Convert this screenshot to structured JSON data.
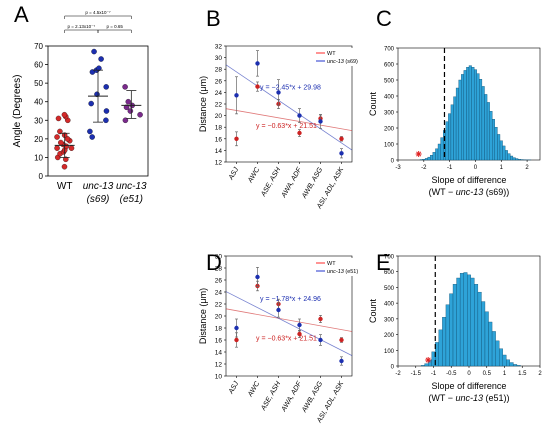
{
  "panel_labels": [
    "A",
    "B",
    "C",
    "D",
    "E"
  ],
  "chart_data": [
    {
      "panel": "A",
      "type": "scatter",
      "ylabel": "Angle (Degrees)",
      "ylim": [
        0,
        70
      ],
      "yticks": [
        0,
        10,
        20,
        30,
        40,
        50,
        60,
        70
      ],
      "groups": [
        {
          "label_line1": "WT",
          "label_line2": "",
          "color": "#d42a2a",
          "values": [
            5,
            9,
            10,
            12,
            13,
            14,
            15,
            15,
            16,
            17,
            18,
            19,
            20,
            21,
            22,
            24,
            30,
            31,
            32,
            33
          ],
          "mean": 16.5,
          "sd_low": 10,
          "sd_high": 23
        },
        {
          "label_line1": "unc-13",
          "label_line2": "(s69)",
          "color": "#1c2fb0",
          "values": [
            21,
            24,
            30,
            35,
            39,
            44,
            48,
            56,
            57,
            58,
            63,
            67
          ],
          "mean": 43,
          "sd_low": 29,
          "sd_high": 57
        },
        {
          "label_line1": "unc-13",
          "label_line2": "(e51)",
          "color": "#7a2a8c",
          "values": [
            30,
            33,
            35,
            37,
            38,
            40,
            48
          ],
          "mean": 38,
          "sd_low": 31,
          "sd_high": 46
        }
      ],
      "significance": [
        {
          "text": "p = 4.5x10⁻⁷",
          "from": 0,
          "to": 2
        },
        {
          "text": "p = 2.13x10⁻⁷",
          "from": 0,
          "to": 1
        },
        {
          "text": "p = 0.65",
          "from": 1,
          "to": 2
        }
      ]
    },
    {
      "panel": "B",
      "type": "scatter",
      "ylabel": "Distance (μm)",
      "ylim": [
        12,
        32
      ],
      "yticks": [
        12,
        14,
        16,
        18,
        20,
        22,
        24,
        26,
        28,
        30,
        32
      ],
      "categories": [
        "ASJ",
        "AWC",
        "ASE, ASH",
        "AWA, ADF",
        "AWB, ASG",
        "ASI, ADL, ASK"
      ],
      "legend": [
        {
          "name": "WT",
          "italic": false,
          "color": "#ff2a2a"
        },
        {
          "name": "unc-13 (s69)",
          "italic": true,
          "color": "#2233cc"
        }
      ],
      "series": [
        {
          "name": "WT",
          "color": "#cc2222",
          "values": [
            16,
            25,
            22,
            17,
            19.5,
            16
          ],
          "err": [
            1.2,
            0.8,
            0.8,
            0.6,
            0.6,
            0.4
          ],
          "fit_slope": -0.63,
          "fit_intercept": 21.51,
          "fit_label": "y = −0.63*x + 21.51"
        },
        {
          "name": "unc-13 (s69)",
          "color": "#1c2fb0",
          "values": [
            23.5,
            29,
            24,
            20,
            19,
            13.5
          ],
          "err": [
            3.2,
            2.2,
            2.2,
            1.2,
            1.2,
            0.8
          ],
          "fit_slope": -2.45,
          "fit_intercept": 29.98,
          "fit_label": "y = −2.45*x + 29.98"
        }
      ]
    },
    {
      "panel": "C",
      "type": "bar",
      "xlabel_line1": "Slope of difference",
      "xlabel_line2": "(WT − unc-13 (s69))",
      "ylabel": "Count",
      "xlim": [
        -3,
        2.5
      ],
      "xticks": [
        -3,
        -2,
        -1,
        0,
        1,
        2
      ],
      "ylim": [
        0,
        700
      ],
      "yticks": [
        0,
        100,
        200,
        300,
        400,
        500,
        600,
        700
      ],
      "bin_centers": [
        -2.1,
        -2.0,
        -1.9,
        -1.8,
        -1.7,
        -1.6,
        -1.5,
        -1.4,
        -1.3,
        -1.2,
        -1.1,
        -1.0,
        -0.9,
        -0.8,
        -0.7,
        -0.6,
        -0.5,
        -0.4,
        -0.3,
        -0.2,
        -0.1,
        0.0,
        0.1,
        0.2,
        0.3,
        0.4,
        0.5,
        0.6,
        0.7,
        0.8,
        0.9,
        1.0,
        1.1,
        1.2,
        1.3,
        1.4,
        1.5,
        1.6,
        1.7,
        1.8,
        1.9,
        2.0,
        2.1
      ],
      "counts": [
        3,
        5,
        10,
        18,
        30,
        48,
        70,
        100,
        140,
        185,
        240,
        290,
        345,
        395,
        450,
        500,
        535,
        560,
        580,
        590,
        580,
        565,
        540,
        505,
        460,
        410,
        360,
        305,
        255,
        205,
        160,
        120,
        88,
        60,
        40,
        25,
        15,
        9,
        5,
        3,
        2,
        1,
        1
      ],
      "threshold_x": -1.2,
      "star_x": -2.2
    },
    {
      "panel": "D",
      "type": "scatter",
      "ylabel": "Distance (μm)",
      "ylim": [
        10,
        30
      ],
      "yticks": [
        10,
        12,
        14,
        16,
        18,
        20,
        22,
        24,
        26,
        28,
        30
      ],
      "categories": [
        "ASJ",
        "AWC",
        "ASE, ASH",
        "AWA, ADF",
        "AWB, ASG",
        "ASI, ADL, ASK"
      ],
      "legend": [
        {
          "name": "WT",
          "italic": false,
          "color": "#ff2a2a"
        },
        {
          "name": "unc-13 (e51)",
          "italic": true,
          "color": "#2233cc"
        }
      ],
      "series": [
        {
          "name": "WT",
          "color": "#cc2222",
          "values": [
            16,
            25,
            22,
            17,
            19.5,
            16
          ],
          "err": [
            1.2,
            0.8,
            0.8,
            0.6,
            0.6,
            0.4
          ],
          "fit_slope": -0.63,
          "fit_intercept": 21.51,
          "fit_label": "y = −0.63*x + 21.51"
        },
        {
          "name": "unc-13 (e51)",
          "color": "#1c2fb0",
          "values": [
            18,
            26.5,
            21,
            18.5,
            16,
            12.5
          ],
          "err": [
            1.5,
            1.6,
            1.2,
            1.0,
            0.9,
            0.7
          ],
          "fit_slope": -1.78,
          "fit_intercept": 24.96,
          "fit_label": "y = −1.78*x + 24.96"
        }
      ]
    },
    {
      "panel": "E",
      "type": "bar",
      "xlabel_line1": "Slope of difference",
      "xlabel_line2": "(WT − unc-13 (e51))",
      "ylabel": "Count",
      "xlim": [
        -2,
        2
      ],
      "xticks": [
        -2,
        -1.5,
        -1,
        -0.5,
        0,
        0.5,
        1,
        1.5,
        2
      ],
      "ylim": [
        0,
        700
      ],
      "yticks": [
        0,
        100,
        200,
        300,
        400,
        500,
        600,
        700
      ],
      "bin_centers": [
        -1.3,
        -1.2,
        -1.1,
        -1.0,
        -0.9,
        -0.8,
        -0.7,
        -0.6,
        -0.5,
        -0.4,
        -0.3,
        -0.2,
        -0.1,
        0.0,
        0.1,
        0.2,
        0.3,
        0.4,
        0.5,
        0.6,
        0.7,
        0.8,
        0.9,
        1.0,
        1.1,
        1.2,
        1.3,
        1.4
      ],
      "counts": [
        4,
        15,
        40,
        90,
        150,
        230,
        310,
        390,
        460,
        520,
        560,
        590,
        595,
        580,
        560,
        520,
        470,
        410,
        345,
        280,
        220,
        160,
        110,
        70,
        40,
        22,
        10,
        4
      ],
      "threshold_x": -0.95,
      "star_x": -1.15
    }
  ]
}
